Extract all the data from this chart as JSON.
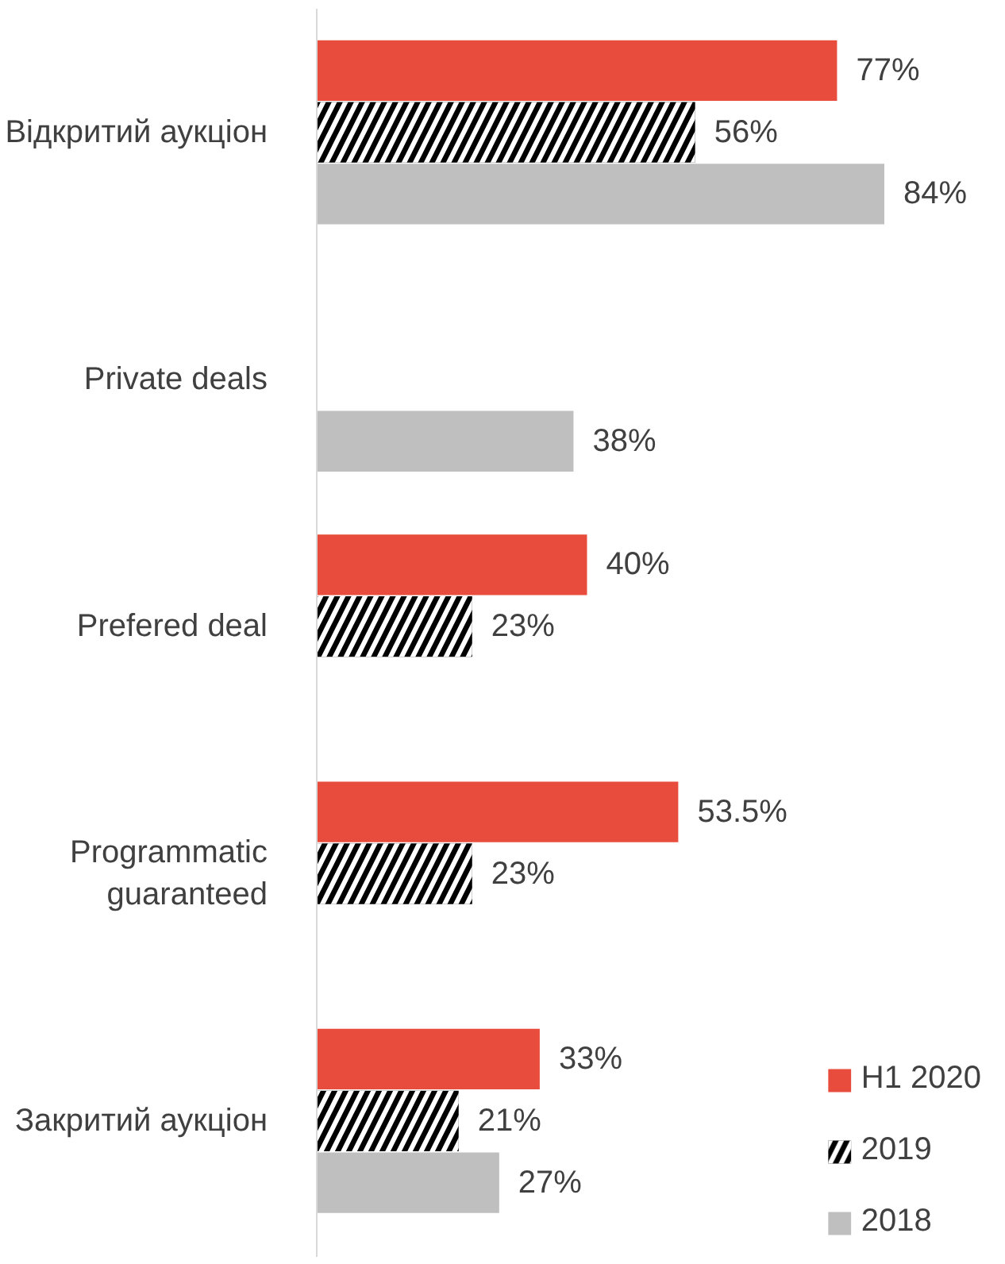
{
  "chart_data": {
    "type": "bar",
    "orientation": "horizontal",
    "categories": [
      "Відкритий аукціон",
      "Private deals",
      "Prefered deal",
      "Programmatic guaranteed",
      "Закритий аукціон"
    ],
    "series": [
      {
        "name": "H1 2020",
        "color": "#e84c3d",
        "values": [
          77,
          null,
          40,
          53.5,
          33
        ],
        "value_labels": [
          "77%",
          null,
          "40%",
          "53.5%",
          "33%"
        ]
      },
      {
        "name": "2019",
        "color": "#000000",
        "values": [
          56,
          null,
          23,
          23,
          21
        ],
        "value_labels": [
          "56%",
          null,
          "23%",
          "23%",
          "21%"
        ]
      },
      {
        "name": "2018",
        "color": "#bfbfbf",
        "values": [
          84,
          38,
          null,
          null,
          27
        ],
        "value_labels": [
          "84%",
          "38%",
          null,
          null,
          "27%"
        ]
      }
    ],
    "data_labels": true,
    "legend": "bottom right",
    "grid": false
  }
}
